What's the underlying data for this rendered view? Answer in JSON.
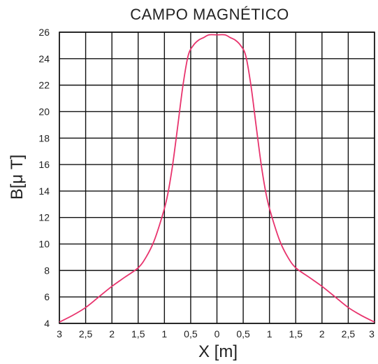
{
  "chart_data": {
    "type": "line",
    "title": "CAMPO  MAGNÉTICO",
    "xlabel": "X  [m]",
    "ylabel": "B[μ T]",
    "x_tick_labels": [
      "3",
      "2,5",
      "2",
      "1,5",
      "1",
      "0,5",
      "0",
      "0,5",
      "1",
      "1,5",
      "2",
      "2,5",
      "3"
    ],
    "x_tick_values": [
      -3,
      -2.5,
      -2,
      -1.5,
      -1,
      -0.5,
      0,
      0.5,
      1,
      1.5,
      2,
      2.5,
      3
    ],
    "y_ticks": [
      4,
      6,
      8,
      10,
      12,
      14,
      16,
      18,
      20,
      22,
      24,
      26
    ],
    "xlim": [
      -3,
      3
    ],
    "ylim": [
      4,
      26
    ],
    "grid": true,
    "line_color": "#e8336d",
    "series": [
      {
        "x": [
          -3.0,
          -2.75,
          -2.5,
          -2.25,
          -2.0,
          -1.75,
          -1.5,
          -1.35,
          -1.2,
          -1.05,
          -0.95,
          -0.85,
          -0.75,
          -0.65,
          -0.55,
          -0.45,
          -0.35,
          -0.25,
          -0.15,
          0.0,
          0.15,
          0.25,
          0.35,
          0.45,
          0.55,
          0.65,
          0.75,
          0.85,
          0.95,
          1.05,
          1.2,
          1.35,
          1.5,
          1.75,
          2.0,
          2.25,
          2.5,
          2.75,
          3.0
        ],
        "y": [
          4.1,
          4.6,
          5.2,
          6.0,
          6.8,
          7.5,
          8.2,
          9.0,
          10.2,
          12.0,
          13.5,
          15.8,
          18.8,
          21.9,
          24.2,
          25.0,
          25.4,
          25.6,
          25.8,
          25.8,
          25.8,
          25.6,
          25.4,
          25.0,
          24.2,
          21.9,
          18.8,
          15.8,
          13.5,
          12.0,
          10.2,
          9.0,
          8.2,
          7.5,
          6.8,
          6.0,
          5.2,
          4.6,
          4.1
        ]
      }
    ]
  }
}
